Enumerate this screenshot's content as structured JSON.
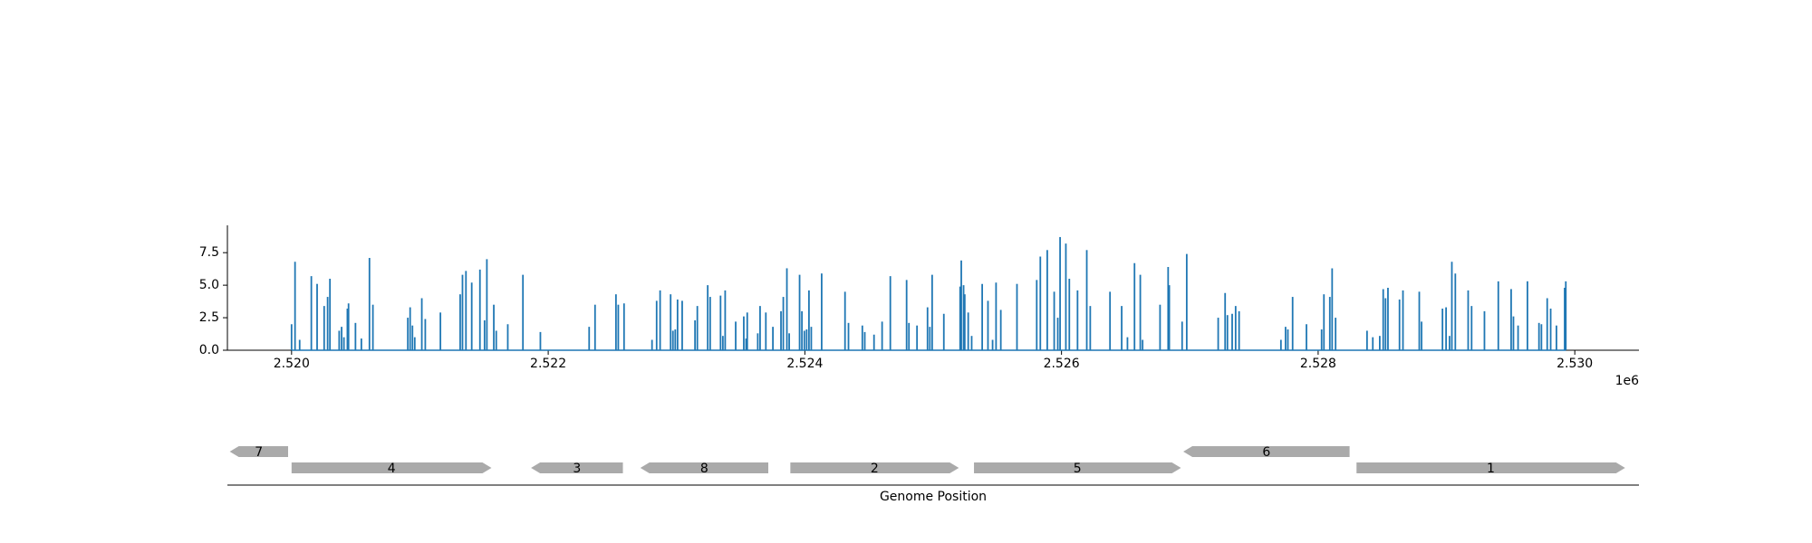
{
  "chart_data": [
    {
      "type": "stem",
      "color": "#1f77b4",
      "xlim": [
        2519500,
        2530500
      ],
      "ylim": [
        0,
        9.6
      ],
      "xticks": [
        {
          "value": 2520000,
          "label": "2.520"
        },
        {
          "value": 2522000,
          "label": "2.522"
        },
        {
          "value": 2524000,
          "label": "2.524"
        },
        {
          "value": 2526000,
          "label": "2.526"
        },
        {
          "value": 2528000,
          "label": "2.528"
        },
        {
          "value": 2530000,
          "label": "2.530"
        }
      ],
      "x_offset_label": "1e6",
      "yticks": [
        {
          "value": 0,
          "label": "0.0"
        },
        {
          "value": 2.5,
          "label": "2.5"
        },
        {
          "value": 5,
          "label": "5.0"
        },
        {
          "value": 7.5,
          "label": "7.5"
        }
      ],
      "x": [
        2520000,
        2520027,
        2520063,
        2520154,
        2520199,
        2520254,
        2520281,
        2520299,
        2520371,
        2520390,
        2520408,
        2520435,
        2520444,
        2520498,
        2520544,
        2520607,
        2520634,
        2520906,
        2520924,
        2520942,
        2520960,
        2521015,
        2521042,
        2521160,
        2521314,
        2521332,
        2521359,
        2521404,
        2521468,
        2521504,
        2521522,
        2521576,
        2521595,
        2521685,
        2521803,
        2521939,
        2522319,
        2522365,
        2522528,
        2522546,
        2522591,
        2522809,
        2522845,
        2522872,
        2522954,
        2522972,
        2522990,
        2523008,
        2523044,
        2523144,
        2523162,
        2523243,
        2523262,
        2523343,
        2523361,
        2523379,
        2523461,
        2523524,
        2523542,
        2523551,
        2523633,
        2523651,
        2523696,
        2523751,
        2523814,
        2523832,
        2523860,
        2523878,
        2523959,
        2523977,
        2523996,
        2524014,
        2524032,
        2524050,
        2524131,
        2524313,
        2524340,
        2524448,
        2524467,
        2524539,
        2524602,
        2524666,
        2524793,
        2524811,
        2524874,
        2524956,
        2524974,
        2524992,
        2525083,
        2525210,
        2525219,
        2525237,
        2525246,
        2525273,
        2525300,
        2525382,
        2525427,
        2525463,
        2525490,
        2525527,
        2525653,
        2525807,
        2525835,
        2525889,
        2525943,
        2525971,
        2525989,
        2526034,
        2526061,
        2526125,
        2526197,
        2526224,
        2526378,
        2526469,
        2526514,
        2526569,
        2526614,
        2526632,
        2526768,
        2526831,
        2526840,
        2526940,
        2526976,
        2527221,
        2527275,
        2527293,
        2527330,
        2527357,
        2527384,
        2527710,
        2527746,
        2527764,
        2527801,
        2527909,
        2528027,
        2528045,
        2528091,
        2528109,
        2528136,
        2528381,
        2528426,
        2528480,
        2528507,
        2528525,
        2528544,
        2528634,
        2528661,
        2528788,
        2528806,
        2528969,
        2528997,
        2529024,
        2529042,
        2529069,
        2529169,
        2529196,
        2529296,
        2529404,
        2529504,
        2529522,
        2529558,
        2529631,
        2529721,
        2529740,
        2529785,
        2529812,
        2529857,
        2529921,
        2529930
      ],
      "values": [
        2.0,
        6.8,
        0.8,
        5.7,
        5.1,
        3.4,
        4.1,
        5.5,
        1.5,
        1.8,
        1.0,
        3.2,
        3.6,
        2.1,
        0.9,
        7.1,
        3.5,
        2.5,
        3.3,
        1.9,
        1.0,
        4.0,
        2.4,
        2.9,
        4.3,
        5.8,
        6.1,
        5.2,
        6.2,
        2.3,
        7.0,
        3.5,
        1.5,
        2.0,
        5.8,
        1.4,
        1.8,
        3.5,
        4.3,
        3.5,
        3.6,
        0.8,
        3.8,
        4.6,
        4.3,
        1.5,
        1.6,
        3.9,
        3.8,
        2.3,
        3.4,
        5.0,
        4.1,
        4.2,
        1.1,
        4.6,
        2.2,
        2.6,
        0.9,
        2.9,
        1.3,
        3.4,
        2.9,
        1.8,
        3.0,
        4.1,
        6.3,
        1.3,
        5.8,
        3.0,
        1.5,
        1.6,
        4.6,
        1.8,
        5.9,
        4.5,
        2.1,
        1.9,
        1.4,
        1.2,
        2.2,
        5.7,
        5.4,
        2.1,
        1.9,
        3.3,
        1.8,
        5.8,
        2.8,
        4.9,
        6.9,
        5.0,
        4.3,
        2.9,
        1.1,
        5.1,
        3.8,
        0.8,
        5.2,
        3.1,
        5.1,
        5.4,
        7.2,
        7.7,
        4.5,
        2.5,
        8.7,
        8.2,
        5.5,
        4.6,
        7.7,
        3.4,
        4.5,
        3.4,
        1.0,
        6.7,
        5.8,
        0.8,
        3.5,
        6.4,
        5.0,
        2.2,
        7.4,
        2.5,
        4.4,
        2.7,
        2.8,
        3.4,
        3.0,
        0.8,
        1.8,
        1.6,
        4.1,
        2.0,
        1.6,
        4.3,
        4.1,
        6.3,
        2.5,
        1.5,
        1.0,
        1.1,
        4.7,
        4.0,
        4.8,
        3.9,
        4.6,
        4.5,
        2.2,
        3.2,
        3.3,
        1.1,
        6.8,
        5.9,
        4.6,
        3.4,
        3.0,
        5.3,
        4.7,
        2.6,
        1.9,
        5.3,
        2.1,
        2.0,
        4.0,
        3.2,
        1.9,
        4.8,
        5.3
      ]
    },
    {
      "type": "gene-map",
      "color": "#aaaaaa",
      "xlim": [
        2519500,
        2530500
      ],
      "xlabel": "Genome Position",
      "genes": [
        {
          "label": "7",
          "start": 2519518,
          "end": 2519973,
          "strand": -1
        },
        {
          "label": "4",
          "start": 2520000,
          "end": 2521558,
          "strand": 1
        },
        {
          "label": "3",
          "start": 2521866,
          "end": 2522582,
          "strand": -1
        },
        {
          "label": "8",
          "start": 2522718,
          "end": 2523715,
          "strand": -1
        },
        {
          "label": "2",
          "start": 2523887,
          "end": 2525200,
          "strand": 1
        },
        {
          "label": "5",
          "start": 2525318,
          "end": 2526931,
          "strand": 1
        },
        {
          "label": "6",
          "start": 2526949,
          "end": 2528245,
          "strand": -1
        },
        {
          "label": "1",
          "start": 2528299,
          "end": 2530392,
          "strand": 1
        }
      ]
    }
  ]
}
